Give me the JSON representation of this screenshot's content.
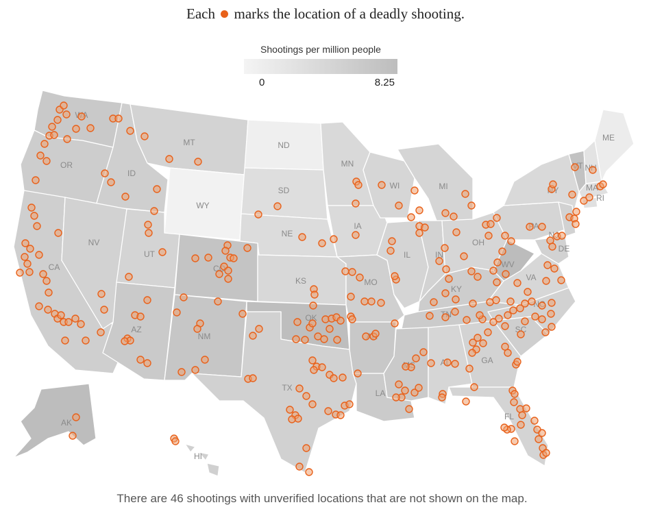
{
  "title": {
    "before": "Each",
    "marker_icon": "orange-dot-icon",
    "after": "marks the location of a deadly shooting."
  },
  "legend": {
    "title": "Shootings per million people",
    "min_label": "0",
    "max_label": "8.25",
    "color_low": "#f4f4f4",
    "color_high": "#bdbdbd"
  },
  "marker_color": "#e8611a",
  "state_labels": [
    "WA",
    "OR",
    "ID",
    "MT",
    "ND",
    "SD",
    "MN",
    "WI",
    "MI",
    "NY",
    "VT",
    "NH",
    "ME",
    "MA",
    "RI",
    "CA",
    "NV",
    "UT",
    "WY",
    "CO",
    "NE",
    "IA",
    "IL",
    "IN",
    "OH",
    "PA",
    "NJ",
    "DE",
    "WV",
    "VA",
    "KY",
    "MO",
    "KS",
    "AZ",
    "NM",
    "OK",
    "TX",
    "AR",
    "TN",
    "NC",
    "SC",
    "GA",
    "AL",
    "MS",
    "LA",
    "FL",
    "AK",
    "HI"
  ],
  "caption": "There are 46 shootings with unverified locations that are not shown on the map."
}
